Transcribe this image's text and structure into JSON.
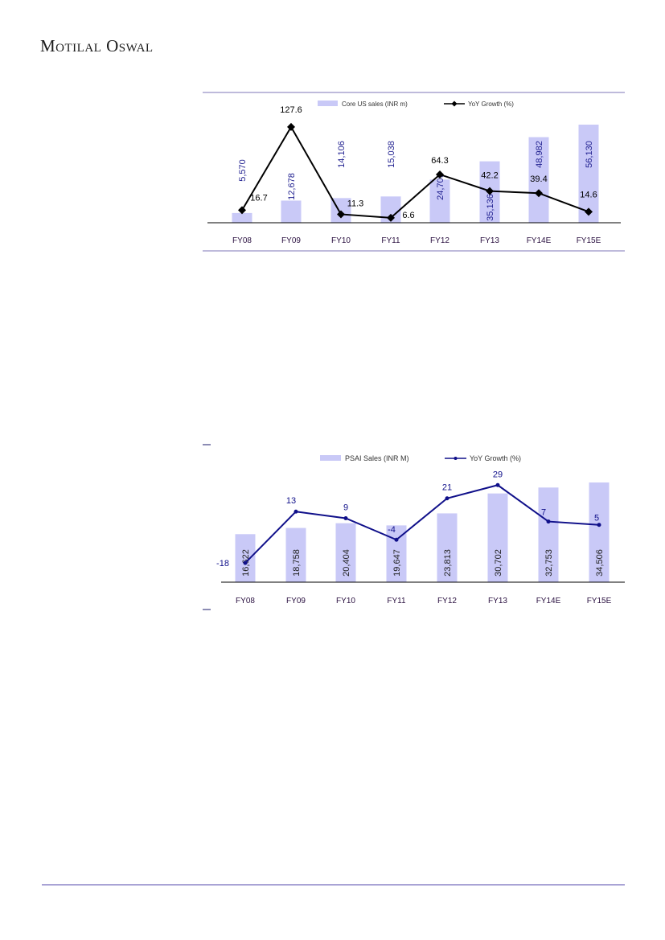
{
  "header": {
    "brand": "Motilal Oswal"
  },
  "chart_data": [
    {
      "type": "bar",
      "categories": [
        "FY08",
        "FY09",
        "FY10",
        "FY11",
        "FY12",
        "FY13",
        "FY14E",
        "FY15E"
      ],
      "series": [
        {
          "name": "Core US sales (INR m)",
          "kind": "bar",
          "values": [
            5570,
            12678,
            14106,
            15038,
            24709,
            35136,
            48982,
            56130
          ],
          "labels": [
            "5,570",
            "12,678",
            "14,106",
            "15,038",
            "24,709",
            "35,136",
            "48,982",
            "56,130"
          ],
          "color": "#c9c9f7"
        },
        {
          "name": "YoY Growth (%)",
          "kind": "line",
          "values": [
            16.7,
            127.6,
            11.3,
            6.6,
            64.3,
            42.2,
            39.4,
            14.6
          ],
          "labels": [
            "16.7",
            "127.6",
            "11.3",
            "6.6",
            "64.3",
            "42.2",
            "39.4",
            "14.6"
          ],
          "color": "#000000"
        }
      ],
      "label_color": "#1f1f8f"
    },
    {
      "type": "bar",
      "categories": [
        "FY08",
        "FY09",
        "FY10",
        "FY11",
        "FY12",
        "FY13",
        "FY14E",
        "FY15E"
      ],
      "series": [
        {
          "name": "PSAI Sales (INR M)",
          "kind": "bar",
          "values": [
            16622,
            18758,
            20404,
            19647,
            23813,
            30702,
            32753,
            34506
          ],
          "labels": [
            "16,622",
            "18,758",
            "20,404",
            "19,647",
            "23,813",
            "30,702",
            "32,753",
            "34,506"
          ],
          "color": "#c9c9f7"
        },
        {
          "name": "YoY Growth (%)",
          "kind": "line",
          "values": [
            -18,
            13,
            9,
            -4,
            21,
            29,
            7,
            5
          ],
          "labels": [
            "-18",
            "13",
            "9",
            "-4",
            "21",
            "29",
            "7",
            "5"
          ],
          "color": "#10108a"
        }
      ],
      "label_color": "#222222"
    }
  ]
}
